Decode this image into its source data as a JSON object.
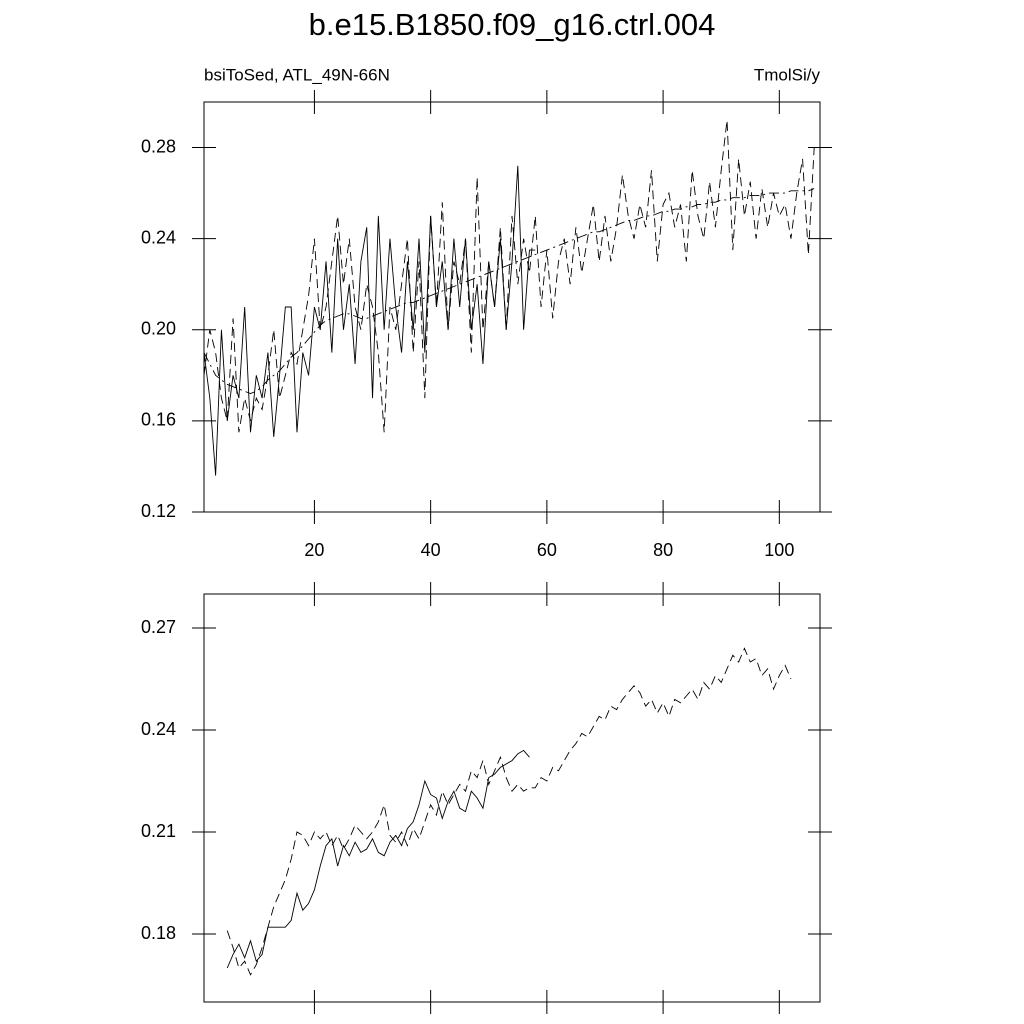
{
  "chart_data": [
    {
      "type": "line",
      "title": "b.e15.B1850.f09_g16.ctrl.004",
      "subtitle_left": "bsiToSed, ATL_49N-66N",
      "subtitle_right": "TmolSi/y",
      "x": [
        1,
        2,
        3,
        4,
        5,
        6,
        7,
        8,
        9,
        10,
        11,
        12,
        13,
        14,
        15,
        16,
        17,
        18,
        19,
        20,
        21,
        22,
        23,
        24,
        25,
        26,
        27,
        28,
        29,
        30,
        31,
        32,
        33,
        34,
        35,
        36,
        37,
        38,
        39,
        40,
        41,
        42,
        43,
        44,
        45,
        46,
        47,
        48,
        49,
        50,
        51,
        52,
        53,
        54,
        55,
        56,
        57,
        58,
        59,
        60,
        61,
        62,
        63,
        64,
        65,
        66,
        67,
        68,
        69,
        70,
        71,
        72,
        73,
        74,
        75,
        76,
        77,
        78,
        79,
        80,
        81,
        82,
        83,
        84,
        85,
        86,
        87,
        88,
        89,
        90,
        91,
        92,
        93,
        94,
        95,
        96,
        97,
        98,
        99,
        100,
        101,
        102,
        103,
        104,
        105,
        106
      ],
      "xlim": [
        1,
        107
      ],
      "xticks": [
        20,
        40,
        60,
        80,
        100
      ],
      "show_xtick_labels": true,
      "ylim": [
        0.12,
        0.3
      ],
      "yticks": [
        0.12,
        0.16,
        {
          "value": 0.2,
          "label": "0.20"
        },
        0.24,
        0.28
      ],
      "series": [
        {
          "color": "#000000",
          "style": "solid",
          "values": [
            0.19,
            0.17,
            0.136,
            0.2,
            0.16,
            0.18,
            0.17,
            0.21,
            0.155,
            0.18,
            0.17,
            0.19,
            0.153,
            0.18,
            0.21,
            0.21,
            0.155,
            0.19,
            0.18,
            0.21,
            0.2,
            0.23,
            0.19,
            0.24,
            0.2,
            0.22,
            0.185,
            0.23,
            0.245,
            0.17,
            0.25,
            0.2,
            0.24,
            0.21,
            0.19,
            0.23,
            0.2,
            0.24,
            0.19,
            0.25,
            0.21,
            0.23,
            0.2,
            0.24,
            0.21,
            0.24,
            0.2,
            0.22,
            0.185,
            0.23,
            0.21,
            0.24,
            0.2,
            0.23,
            0.272,
            0.2,
            0.235,
            0.235,
            null,
            null,
            null,
            null,
            null,
            null,
            null,
            null,
            null,
            null,
            null,
            null,
            null,
            null,
            null,
            null,
            null,
            null,
            null,
            null,
            null,
            null,
            null,
            null,
            null,
            null,
            null,
            null,
            null,
            null,
            null,
            null,
            null,
            null,
            null,
            null,
            null,
            null,
            null,
            null,
            null,
            null,
            null,
            null,
            null,
            null,
            null,
            null
          ]
        },
        {
          "color": "#000000",
          "style": "dashed",
          "values": [
            0.18,
            0.2,
            0.19,
            0.17,
            0.16,
            0.205,
            0.155,
            0.17,
            0.16,
            0.17,
            0.165,
            0.18,
            0.2,
            0.17,
            0.18,
            0.19,
            0.185,
            0.2,
            0.215,
            0.24,
            0.2,
            0.21,
            0.23,
            0.25,
            0.22,
            0.24,
            0.21,
            0.2,
            0.22,
            0.21,
            0.19,
            0.155,
            0.21,
            0.2,
            0.22,
            0.24,
            0.19,
            0.23,
            0.17,
            0.25,
            0.21,
            0.256,
            0.2,
            0.23,
            0.22,
            0.24,
            0.19,
            0.267,
            0.2,
            0.23,
            0.21,
            0.245,
            0.2,
            0.25,
            0.22,
            0.24,
            0.225,
            0.25,
            0.21,
            0.235,
            0.205,
            0.23,
            0.24,
            0.22,
            0.245,
            0.225,
            0.24,
            0.255,
            0.23,
            0.25,
            0.23,
            0.245,
            0.268,
            0.25,
            0.24,
            0.255,
            0.245,
            0.27,
            0.23,
            0.255,
            0.26,
            0.245,
            0.255,
            0.23,
            0.27,
            0.25,
            0.24,
            0.265,
            0.245,
            0.27,
            0.292,
            0.235,
            0.275,
            0.25,
            0.265,
            0.24,
            0.262,
            0.245,
            0.26,
            0.25,
            0.255,
            0.24,
            0.26,
            0.275,
            0.233,
            0.28
          ]
        },
        {
          "color": "#000000",
          "style": "dashdot",
          "values": [
            0.19,
            0.185,
            0.18,
            0.178,
            0.176,
            0.175,
            0.174,
            0.173,
            0.172,
            0.173,
            0.175,
            0.178,
            0.18,
            0.182,
            0.185,
            0.188,
            0.19,
            0.193,
            0.196,
            0.199,
            0.202,
            0.204,
            0.205,
            0.206,
            0.207,
            0.207,
            0.206,
            0.205,
            0.205,
            0.206,
            0.207,
            0.208,
            0.209,
            0.21,
            0.211,
            0.212,
            0.212,
            0.213,
            0.214,
            0.215,
            0.216,
            0.217,
            0.218,
            0.219,
            0.22,
            0.221,
            0.222,
            0.223,
            0.224,
            0.225,
            0.226,
            0.227,
            0.228,
            0.229,
            0.23,
            0.231,
            0.232,
            0.233,
            0.234,
            0.235,
            0.236,
            0.237,
            0.238,
            0.239,
            0.24,
            0.241,
            0.242,
            0.243,
            0.243,
            0.244,
            0.245,
            0.246,
            0.247,
            0.248,
            0.248,
            0.249,
            0.25,
            0.25,
            0.251,
            0.252,
            0.252,
            0.253,
            0.253,
            0.254,
            0.254,
            0.255,
            0.255,
            0.256,
            0.256,
            0.257,
            0.257,
            0.258,
            0.258,
            0.258,
            0.259,
            0.259,
            0.259,
            0.26,
            0.26,
            0.26,
            0.26,
            0.261,
            0.261,
            0.261,
            0.261,
            0.262
          ]
        }
      ]
    },
    {
      "type": "line",
      "x": [
        1,
        2,
        3,
        4,
        5,
        6,
        7,
        8,
        9,
        10,
        11,
        12,
        13,
        14,
        15,
        16,
        17,
        18,
        19,
        20,
        21,
        22,
        23,
        24,
        25,
        26,
        27,
        28,
        29,
        30,
        31,
        32,
        33,
        34,
        35,
        36,
        37,
        38,
        39,
        40,
        41,
        42,
        43,
        44,
        45,
        46,
        47,
        48,
        49,
        50,
        51,
        52,
        53,
        54,
        55,
        56,
        57,
        58,
        59,
        60,
        61,
        62,
        63,
        64,
        65,
        66,
        67,
        68,
        69,
        70,
        71,
        72,
        73,
        74,
        75,
        76,
        77,
        78,
        79,
        80,
        81,
        82,
        83,
        84,
        85,
        86,
        87,
        88,
        89,
        90,
        91,
        92,
        93,
        94,
        95,
        96,
        97,
        98,
        99,
        100,
        101,
        102,
        103,
        104,
        105,
        106
      ],
      "xlim": [
        1,
        107
      ],
      "xticks": [
        20,
        40,
        60,
        80,
        100
      ],
      "show_xtick_labels": false,
      "ylim": [
        0.16,
        0.28
      ],
      "yticks": [
        0.18,
        0.21,
        0.24,
        0.27
      ],
      "series": [
        {
          "color": "#000000",
          "style": "solid",
          "values": [
            null,
            null,
            null,
            null,
            0.17,
            0.174,
            0.177,
            0.173,
            0.178,
            0.172,
            0.174,
            0.182,
            0.182,
            0.182,
            0.182,
            0.184,
            0.192,
            0.187,
            0.189,
            0.193,
            0.2,
            0.206,
            0.208,
            0.2,
            0.206,
            0.203,
            0.207,
            0.204,
            0.205,
            0.208,
            0.204,
            0.203,
            0.207,
            0.209,
            0.206,
            0.211,
            0.213,
            0.218,
            0.225,
            0.221,
            0.22,
            0.214,
            0.219,
            0.222,
            0.217,
            0.216,
            0.222,
            0.22,
            0.217,
            0.226,
            0.227,
            0.229,
            0.23,
            0.231,
            0.233,
            0.234,
            0.232,
            null,
            null,
            null,
            null,
            null,
            null,
            null,
            null,
            null,
            null,
            null,
            null,
            null,
            null,
            null,
            null,
            null,
            null,
            null,
            null,
            null,
            null,
            null,
            null,
            null,
            null,
            null,
            null,
            null,
            null,
            null,
            null,
            null,
            null,
            null,
            null,
            null,
            null,
            null,
            null,
            null,
            null,
            null,
            null,
            null,
            null,
            null,
            null,
            null
          ]
        },
        {
          "color": "#000000",
          "style": "dashed",
          "values": [
            null,
            null,
            null,
            null,
            0.181,
            0.176,
            0.17,
            0.172,
            0.168,
            0.171,
            0.176,
            0.182,
            0.188,
            0.192,
            0.196,
            0.202,
            0.21,
            0.209,
            0.206,
            0.21,
            0.208,
            0.21,
            0.206,
            0.209,
            0.205,
            0.208,
            0.212,
            0.21,
            0.208,
            0.21,
            0.213,
            0.218,
            0.209,
            0.207,
            0.21,
            0.206,
            0.211,
            0.208,
            0.213,
            0.218,
            0.215,
            0.222,
            0.218,
            0.221,
            0.224,
            0.222,
            0.228,
            0.226,
            0.231,
            0.224,
            0.228,
            0.232,
            0.226,
            0.222,
            0.224,
            0.222,
            0.223,
            0.223,
            0.226,
            0.225,
            0.229,
            0.228,
            0.231,
            0.234,
            0.236,
            0.239,
            0.238,
            0.241,
            0.244,
            0.243,
            0.247,
            0.246,
            0.249,
            0.251,
            0.253,
            0.251,
            0.247,
            0.249,
            0.245,
            0.248,
            0.244,
            0.249,
            0.248,
            0.25,
            0.252,
            0.249,
            0.254,
            0.252,
            0.256,
            0.254,
            0.258,
            0.262,
            0.26,
            0.264,
            0.26,
            0.261,
            0.256,
            0.258,
            0.252,
            0.256,
            0.259,
            0.255,
            null,
            null,
            null,
            null
          ]
        }
      ]
    }
  ]
}
